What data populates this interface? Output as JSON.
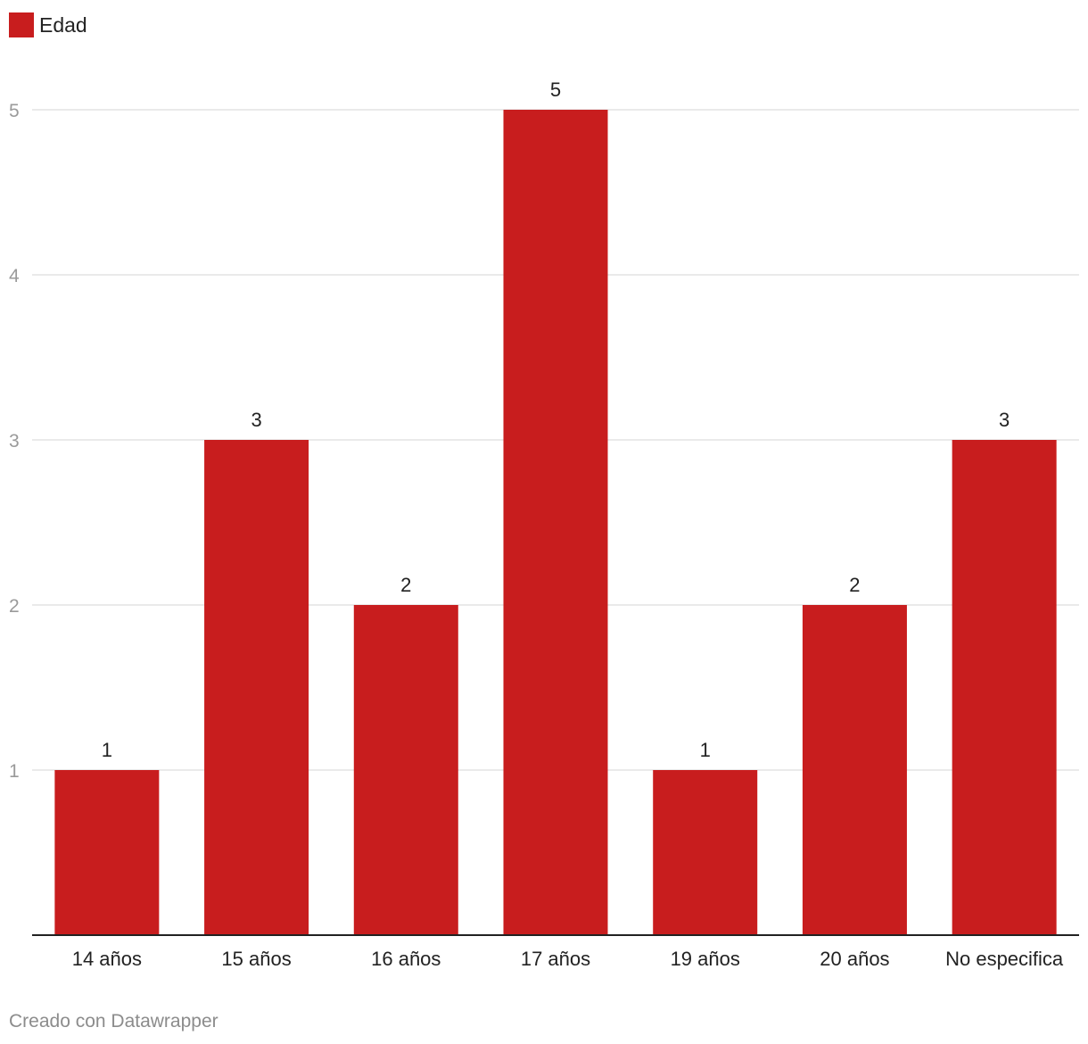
{
  "chart_data": {
    "type": "bar",
    "title": "",
    "xlabel": "",
    "ylabel": "",
    "categories": [
      "14 años",
      "15 años",
      "16 años",
      "17 años",
      "19 años",
      "20 años",
      "No especifica"
    ],
    "series": [
      {
        "name": "Edad",
        "values": [
          1,
          3,
          2,
          5,
          1,
          2,
          3
        ]
      }
    ],
    "ylim": [
      0,
      5
    ],
    "yticks": [
      1,
      2,
      3,
      4,
      5
    ],
    "grid": true,
    "legend": "top-left",
    "bar_color": "#c81d1e",
    "grid_color": "#e3e3e3",
    "axis_color": "#222222"
  },
  "legend": {
    "label": "Edad"
  },
  "footer": {
    "text": "Creado con Datawrapper"
  }
}
